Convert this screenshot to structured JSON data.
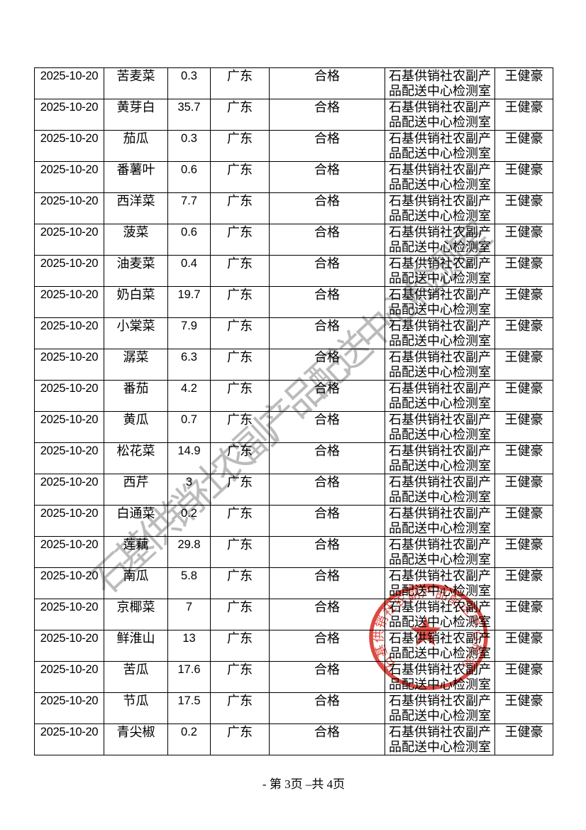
{
  "page": {
    "footer": "- 第 3页 –共 4页"
  },
  "watermark": {
    "text": "石基供销社农副产品配送中心检测室",
    "color": "#8d8d8d"
  },
  "stamp": {
    "ring_text": "石基供销社农副产品配送中心检测室",
    "color": "#d93a30",
    "star": "five-point-star"
  },
  "table": {
    "columns": [
      "date",
      "product",
      "value",
      "origin",
      "result",
      "lab",
      "inspector"
    ],
    "rows": [
      [
        "2025-10-20",
        "苦麦菜",
        "0.3",
        "广东",
        "合格",
        "石基供销社农副产品配送中心检测室",
        "王健豪"
      ],
      [
        "2025-10-20",
        "黄芽白",
        "35.7",
        "广东",
        "合格",
        "石基供销社农副产品配送中心检测室",
        "王健豪"
      ],
      [
        "2025-10-20",
        "茄瓜",
        "0.3",
        "广东",
        "合格",
        "石基供销社农副产品配送中心检测室",
        "王健豪"
      ],
      [
        "2025-10-20",
        "番薯叶",
        "0.6",
        "广东",
        "合格",
        "石基供销社农副产品配送中心检测室",
        "王健豪"
      ],
      [
        "2025-10-20",
        "西洋菜",
        "7.7",
        "广东",
        "合格",
        "石基供销社农副产品配送中心检测室",
        "王健豪"
      ],
      [
        "2025-10-20",
        "菠菜",
        "0.6",
        "广东",
        "合格",
        "石基供销社农副产品配送中心检测室",
        "王健豪"
      ],
      [
        "2025-10-20",
        "油麦菜",
        "0.4",
        "广东",
        "合格",
        "石基供销社农副产品配送中心检测室",
        "王健豪"
      ],
      [
        "2025-10-20",
        "奶白菜",
        "19.7",
        "广东",
        "合格",
        "石基供销社农副产品配送中心检测室",
        "王健豪"
      ],
      [
        "2025-10-20",
        "小棠菜",
        "7.9",
        "广东",
        "合格",
        "石基供销社农副产品配送中心检测室",
        "王健豪"
      ],
      [
        "2025-10-20",
        "潺菜",
        "6.3",
        "广东",
        "合格",
        "石基供销社农副产品配送中心检测室",
        "王健豪"
      ],
      [
        "2025-10-20",
        "番茄",
        "4.2",
        "广东",
        "合格",
        "石基供销社农副产品配送中心检测室",
        "王健豪"
      ],
      [
        "2025-10-20",
        "黄瓜",
        "0.7",
        "广东",
        "合格",
        "石基供销社农副产品配送中心检测室",
        "王健豪"
      ],
      [
        "2025-10-20",
        "松花菜",
        "14.9",
        "广东",
        "合格",
        "石基供销社农副产品配送中心检测室",
        "王健豪"
      ],
      [
        "2025-10-20",
        "西芹",
        "3",
        "广东",
        "合格",
        "石基供销社农副产品配送中心检测室",
        "王健豪"
      ],
      [
        "2025-10-20",
        "白通菜",
        "0.2",
        "广东",
        "合格",
        "石基供销社农副产品配送中心检测室",
        "王健豪"
      ],
      [
        "2025-10-20",
        "莲藕",
        "29.8",
        "广东",
        "合格",
        "石基供销社农副产品配送中心检测室",
        "王健豪"
      ],
      [
        "2025-10-20",
        "南瓜",
        "5.8",
        "广东",
        "合格",
        "石基供销社农副产品配送中心检测室",
        "王健豪"
      ],
      [
        "2025-10-20",
        "京椰菜",
        "7",
        "广东",
        "合格",
        "石基供销社农副产品配送中心检测室",
        "王健豪"
      ],
      [
        "2025-10-20",
        "鲜淮山",
        "13",
        "广东",
        "合格",
        "石基供销社农副产品配送中心检测室",
        "王健豪"
      ],
      [
        "2025-10-20",
        "苦瓜",
        "17.6",
        "广东",
        "合格",
        "石基供销社农副产品配送中心检测室",
        "王健豪"
      ],
      [
        "2025-10-20",
        "节瓜",
        "17.5",
        "广东",
        "合格",
        "石基供销社农副产品配送中心检测室",
        "王健豪"
      ],
      [
        "2025-10-20",
        "青尖椒",
        "0.2",
        "广东",
        "合格",
        "石基供销社农副产品配送中心检测室",
        "王健豪"
      ]
    ]
  }
}
